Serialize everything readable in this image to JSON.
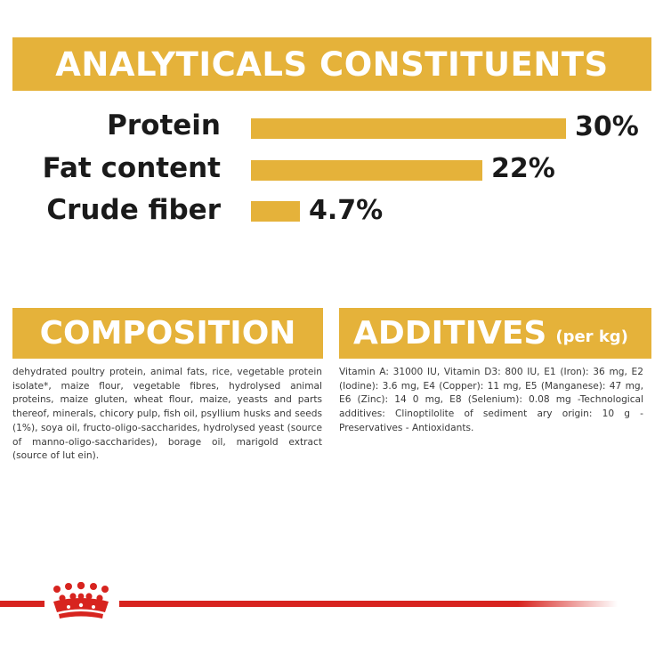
{
  "title": "ANALYTICALS CONSTITUENTS",
  "bar_max_percent": 30,
  "constituents": [
    {
      "label": "Protein",
      "value_text": "30%",
      "value": 30
    },
    {
      "label": "Fat content",
      "value_text": "22%",
      "value": 22
    },
    {
      "label": "Crude fiber",
      "value_text": "4.7%",
      "value": 4.7
    }
  ],
  "composition": {
    "heading": "COMPOSITION",
    "text": "dehydrated poultry protein, animal fats, rice, vegetable protein isolate*, maize flour, vegetable fibres, hydrolysed animal proteins, maize gluten, wheat flour, maize, yeasts and parts thereof, minerals, chicory pulp, fish oil, psyllium husks and seeds (1%), soya oil, fructo-oligo-saccharides, hydrolysed yeast (source of manno-oligo-saccharides), borage oil, marigold extract (source of lut ein)."
  },
  "additives": {
    "heading": "ADDITIVES",
    "subheading": "(per kg)",
    "text": "Vitamin A: 31000 IU, Vitamin D3: 800 IU, E1 (Iron): 36 mg, E2 (Iodine): 3.6 mg, E4 (Copper): 11 mg, E5 (Manganese): 47 mg, E6 (Zinc): 14 0 mg, E8 (Selenium): 0.08 mg -Technological additives: Clinoptilolite of sediment ary origin: 10 g - Preservatives - Antioxidants."
  },
  "colors": {
    "accent": "#e5b23a",
    "brand_red": "#d7241f"
  },
  "logo_icon": "crown-logo-icon"
}
